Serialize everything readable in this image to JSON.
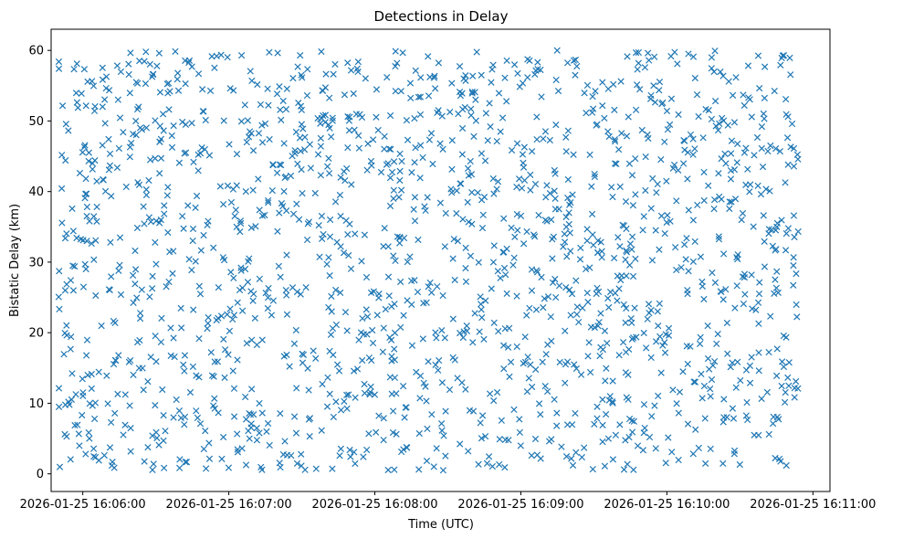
{
  "chart_data": {
    "type": "scatter",
    "title": "Detections in Delay",
    "xlabel": "Time (UTC)",
    "ylabel": "Bistatic Delay (km)",
    "marker": "x",
    "color": "#1f77b4",
    "xlim": [
      "2026-01-25 16:05:47",
      "2026-01-25 16:11:07"
    ],
    "ylim": [
      -2.5,
      63
    ],
    "x_ticks": [
      "2026-01-25 16:06:00",
      "2026-01-25 16:07:00",
      "2026-01-25 16:08:00",
      "2026-01-25 16:09:00",
      "2026-01-25 16:10:00",
      "2026-01-25 16:11:00"
    ],
    "y_ticks": [
      0,
      10,
      20,
      30,
      40,
      50,
      60
    ],
    "grid": false,
    "points_generation": {
      "count": 1700,
      "time_start": "2026-01-25 16:05:50",
      "time_end": "2026-01-25 16:10:54",
      "delay_min": 0.5,
      "delay_max": 60
    }
  }
}
